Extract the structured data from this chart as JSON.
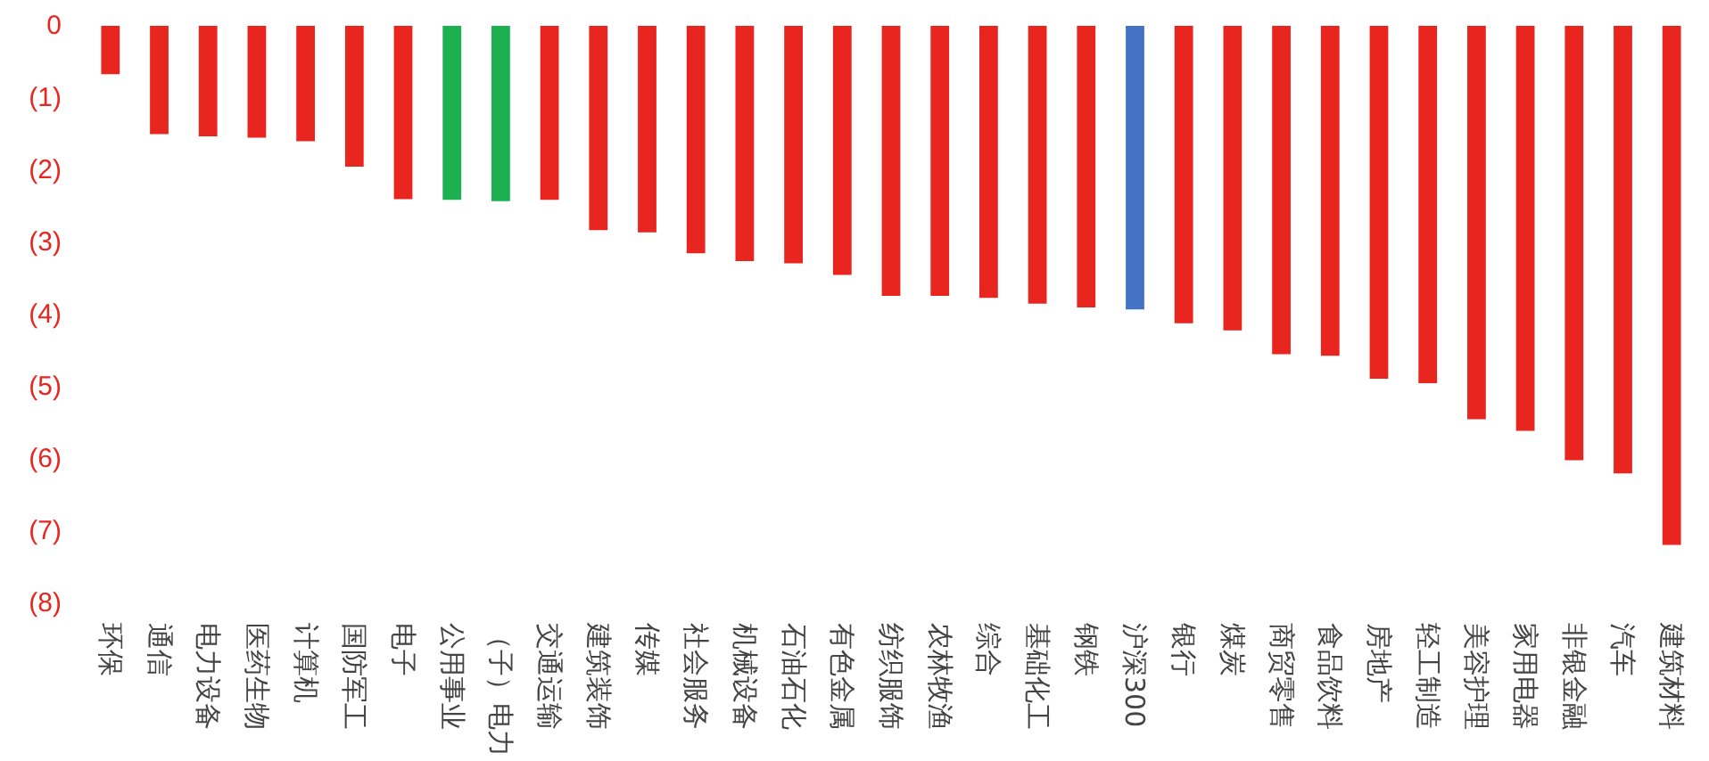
{
  "chart_data": {
    "type": "bar",
    "categories": [
      "环保",
      "通信",
      "电力设备",
      "医药生物",
      "计算机",
      "国防军工",
      "电子",
      "公用事业",
      "（子）电力",
      "交通运输",
      "建筑装饰",
      "传媒",
      "社会服务",
      "机械设备",
      "石油石化",
      "有色金属",
      "纺织服饰",
      "农林牧渔",
      "综合",
      "基础化工",
      "钢铁",
      "沪深300",
      "银行",
      "煤炭",
      "商贸零售",
      "食品饮料",
      "房地产",
      "轻工制造",
      "美容护理",
      "家用电器",
      "非银金融",
      "汽车",
      "建筑材料"
    ],
    "values": [
      -0.67,
      -1.5,
      -1.53,
      -1.55,
      -1.6,
      -1.95,
      -2.4,
      -2.41,
      -2.43,
      -2.41,
      -2.83,
      -2.86,
      -3.15,
      -3.26,
      -3.29,
      -3.45,
      -3.74,
      -3.74,
      -3.77,
      -3.85,
      -3.9,
      -3.93,
      -4.12,
      -4.22,
      -4.55,
      -4.57,
      -4.89,
      -4.95,
      -5.45,
      -5.61,
      -6.02,
      -6.2,
      -7.19
    ],
    "colors": [
      "#e8261f",
      "#e8261f",
      "#e8261f",
      "#e8261f",
      "#e8261f",
      "#e8261f",
      "#e8261f",
      "#1db050",
      "#1db050",
      "#e8261f",
      "#e8261f",
      "#e8261f",
      "#e8261f",
      "#e8261f",
      "#e8261f",
      "#e8261f",
      "#e8261f",
      "#e8261f",
      "#e8261f",
      "#e8261f",
      "#e8261f",
      "#4472c4",
      "#e8261f",
      "#e8261f",
      "#e8261f",
      "#e8261f",
      "#e8261f",
      "#e8261f",
      "#e8261f",
      "#e8261f",
      "#e8261f",
      "#e8261f",
      "#e8261f"
    ],
    "ylim": [
      -8,
      0
    ],
    "yticks": [
      0,
      {
        "value": -1,
        "label": "(1)"
      },
      {
        "value": -2,
        "label": "(2)"
      },
      {
        "value": -3,
        "label": "(3)"
      },
      {
        "value": -4,
        "label": "(4)"
      },
      {
        "value": -5,
        "label": "(5)"
      },
      {
        "value": -6,
        "label": "(6)"
      },
      {
        "value": -7,
        "label": "(7)"
      },
      {
        "value": -8,
        "label": "(8)"
      }
    ],
    "grid": false
  }
}
